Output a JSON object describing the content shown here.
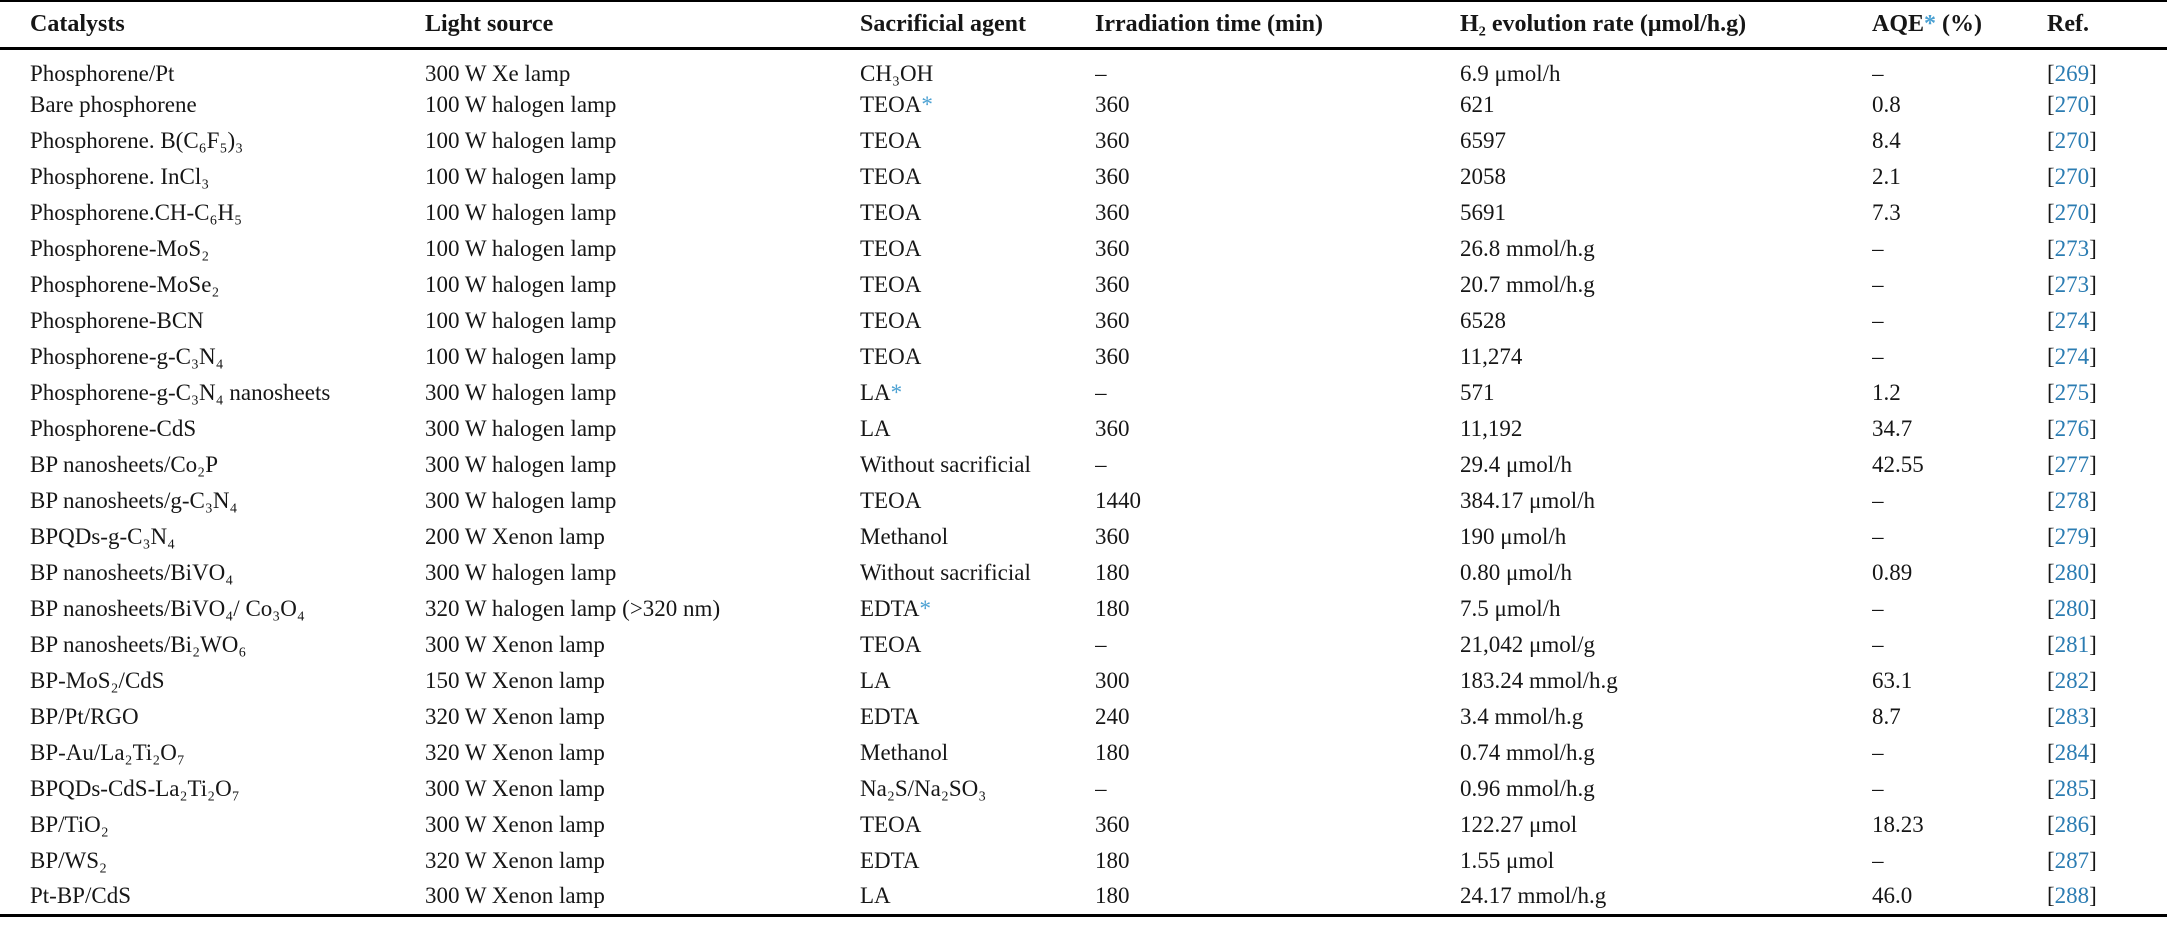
{
  "table": {
    "colors": {
      "link": "#2b7cb2",
      "star": "#4aa0d2",
      "rule": "#000000",
      "text": "#161616"
    },
    "columns": [
      {
        "key": "catalyst",
        "label": "Catalysts"
      },
      {
        "key": "light",
        "label": "Light source"
      },
      {
        "key": "agent",
        "label": "Sacrificial agent"
      },
      {
        "key": "time",
        "label": "Irradiation time (min)"
      },
      {
        "key": "rate",
        "label": "H₂ evolution rate (μmol/h.g)"
      },
      {
        "key": "aqe",
        "label": "AQE* (%)"
      },
      {
        "key": "ref",
        "label": "Ref."
      }
    ],
    "rows": [
      {
        "catalyst": "Phosphorene/Pt",
        "light": "300 W Xe lamp",
        "agent": "CH₃OH",
        "time": "–",
        "rate": "6.9 μmol/h",
        "aqe": "–",
        "ref": "269"
      },
      {
        "catalyst": "Bare phosphorene",
        "light": "100 W halogen lamp",
        "agent": "TEOA*",
        "time": "360",
        "rate": "621",
        "aqe": "0.8",
        "ref": "270"
      },
      {
        "catalyst": "Phosphorene. B(C₆F₅)₃",
        "light": "100 W halogen lamp",
        "agent": "TEOA",
        "time": "360",
        "rate": "6597",
        "aqe": "8.4",
        "ref": "270"
      },
      {
        "catalyst": "Phosphorene. InCl₃",
        "light": "100 W halogen lamp",
        "agent": "TEOA",
        "time": "360",
        "rate": "2058",
        "aqe": "2.1",
        "ref": "270"
      },
      {
        "catalyst": "Phosphorene.CH-C₆H₅",
        "light": "100 W halogen lamp",
        "agent": "TEOA",
        "time": "360",
        "rate": "5691",
        "aqe": "7.3",
        "ref": "270"
      },
      {
        "catalyst": "Phosphorene-MoS₂",
        "light": "100 W halogen lamp",
        "agent": "TEOA",
        "time": "360",
        "rate": "26.8 mmol/h.g",
        "aqe": "–",
        "ref": "273"
      },
      {
        "catalyst": "Phosphorene-MoSe₂",
        "light": "100 W halogen lamp",
        "agent": "TEOA",
        "time": "360",
        "rate": "20.7 mmol/h.g",
        "aqe": "–",
        "ref": "273"
      },
      {
        "catalyst": "Phosphorene-BCN",
        "light": "100 W halogen lamp",
        "agent": "TEOA",
        "time": "360",
        "rate": "6528",
        "aqe": "–",
        "ref": "274"
      },
      {
        "catalyst": "Phosphorene-g-C₃N₄",
        "light": "100 W halogen lamp",
        "agent": "TEOA",
        "time": "360",
        "rate": "11,274",
        "aqe": "–",
        "ref": "274"
      },
      {
        "catalyst": "Phosphorene-g-C₃N₄ nanosheets",
        "light": "300 W halogen lamp",
        "agent": "LA*",
        "time": "–",
        "rate": "571",
        "aqe": "1.2",
        "ref": "275"
      },
      {
        "catalyst": "Phosphorene-CdS",
        "light": "300 W halogen lamp",
        "agent": "LA",
        "time": "360",
        "rate": "11,192",
        "aqe": "34.7",
        "ref": "276"
      },
      {
        "catalyst": "BP nanosheets/Co₂P",
        "light": "300 W halogen lamp",
        "agent": "Without sacrificial",
        "time": "–",
        "rate": "29.4 μmol/h",
        "aqe": "42.55",
        "ref": "277"
      },
      {
        "catalyst": "BP nanosheets/g-C₃N₄",
        "light": "300 W halogen lamp",
        "agent": "TEOA",
        "time": "1440",
        "rate": "384.17 μmol/h",
        "aqe": "–",
        "ref": "278"
      },
      {
        "catalyst": "BPQDs-g-C₃N₄",
        "light": "200 W Xenon lamp",
        "agent": "Methanol",
        "time": "360",
        "rate": "190 μmol/h",
        "aqe": "–",
        "ref": "279"
      },
      {
        "catalyst": "BP nanosheets/BiVO₄",
        "light": "300 W halogen lamp",
        "agent": "Without sacrificial",
        "time": "180",
        "rate": "0.80 μmol/h",
        "aqe": "0.89",
        "ref": "280"
      },
      {
        "catalyst": "BP nanosheets/BiVO₄/ Co₃O₄",
        "light": "320 W halogen lamp (>320 nm)",
        "agent": "EDTA*",
        "time": "180",
        "rate": "7.5 μmol/h",
        "aqe": "–",
        "ref": "280"
      },
      {
        "catalyst": "BP nanosheets/Bi₂WO₆",
        "light": "300 W Xenon lamp",
        "agent": "TEOA",
        "time": "–",
        "rate": "21,042 μmol/g",
        "aqe": "–",
        "ref": "281"
      },
      {
        "catalyst": "BP-MoS₂/CdS",
        "light": "150 W Xenon lamp",
        "agent": "LA",
        "time": "300",
        "rate": "183.24 mmol/h.g",
        "aqe": "63.1",
        "ref": "282"
      },
      {
        "catalyst": "BP/Pt/RGO",
        "light": "320 W Xenon lamp",
        "agent": "EDTA",
        "time": "240",
        "rate": "3.4 mmol/h.g",
        "aqe": "8.7",
        "ref": "283"
      },
      {
        "catalyst": "BP-Au/La₂Ti₂O₇",
        "light": "320 W Xenon lamp",
        "agent": "Methanol",
        "time": "180",
        "rate": "0.74 mmol/h.g",
        "aqe": "–",
        "ref": "284"
      },
      {
        "catalyst": "BPQDs-CdS-La₂Ti₂O₇",
        "light": "300 W Xenon lamp",
        "agent": "Na₂S/Na₂SO₃",
        "time": "–",
        "rate": "0.96 mmol/h.g",
        "aqe": "–",
        "ref": "285"
      },
      {
        "catalyst": "BP/TiO₂",
        "light": "300 W Xenon lamp",
        "agent": "TEOA",
        "time": "360",
        "rate": "122.27 μmol",
        "aqe": "18.23",
        "ref": "286"
      },
      {
        "catalyst": "BP/WS₂",
        "light": "320 W Xenon lamp",
        "agent": "EDTA",
        "time": "180",
        "rate": "1.55 μmol",
        "aqe": "–",
        "ref": "287"
      },
      {
        "catalyst": "Pt-BP/CdS",
        "light": "300 W Xenon lamp",
        "agent": "LA",
        "time": "180",
        "rate": "24.17 mmol/h.g",
        "aqe": "46.0",
        "ref": "288"
      }
    ]
  }
}
